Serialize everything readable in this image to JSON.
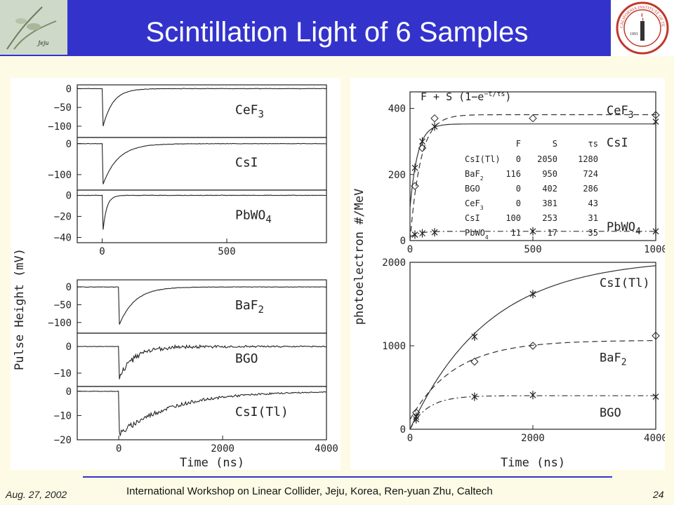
{
  "slide": {
    "title": "Scintillation Light of 6 Samples",
    "logo_left_text": "Jeju",
    "logo_right_text": "CALIFORNIA INSTITUTE OF TECHNOLOGY",
    "logo_right_year": "1891",
    "footer_date": "Aug. 27, 2002",
    "footer_text": "International Workshop on Linear Collider, Jeju, Korea, Ren-yuan Zhu, Caltech",
    "page_number": "24",
    "colors": {
      "title_bar": "#3333cc",
      "background": "#fdfbe6"
    }
  },
  "chart_data": [
    {
      "type": "line",
      "ylabel": "Pulse Height (mV)",
      "xlabel": "",
      "xlim": [
        -100,
        900
      ],
      "xticks": [
        "0",
        "500"
      ],
      "panels": [
        {
          "label": "CeF3",
          "ylim": [
            -130,
            10
          ],
          "yticks": [
            "0",
            "−50",
            "−100"
          ],
          "peak": -110
        },
        {
          "label": "CsI",
          "ylim": [
            -150,
            20
          ],
          "yticks": [
            "0",
            "−100"
          ],
          "peak": -140
        },
        {
          "label": "PbWO4",
          "ylim": [
            -45,
            5
          ],
          "yticks": [
            "0",
            "−20",
            "−40"
          ],
          "peak": -42
        }
      ]
    },
    {
      "type": "line",
      "xlabel": "Time (ns)",
      "xlim": [
        -800,
        4000
      ],
      "xticks": [
        "0",
        "2000",
        "4000"
      ],
      "panels": [
        {
          "label": "BaF2",
          "ylim": [
            -130,
            20
          ],
          "yticks": [
            "0",
            "−50",
            "−100"
          ],
          "peak": -110
        },
        {
          "label": "BGO",
          "ylim": [
            -15,
            5
          ],
          "yticks": [
            "0",
            "−10"
          ],
          "peak": -12
        },
        {
          "label": "CsI(Tl)",
          "ylim": [
            -20,
            2
          ],
          "yticks": [
            "0",
            "−10",
            "−20"
          ],
          "peak": -18
        }
      ]
    },
    {
      "type": "line",
      "ylabel": "photoelectron #/MeV",
      "formula": "F + S (1−e",
      "formula_exp": "−t/τs",
      "formula_end": ")",
      "xlim": [
        0,
        1000
      ],
      "ylim": [
        0,
        450
      ],
      "xticks": [
        0,
        500,
        1000
      ],
      "yticks": [
        0,
        200,
        400
      ],
      "curve_labels": [
        "CeF3",
        "CsI",
        "PbWO4"
      ],
      "table": {
        "headers": [
          "",
          "F",
          "S",
          "τs"
        ],
        "rows": [
          [
            "CsI(Tl)",
            "0",
            "2050",
            "1280"
          ],
          [
            "BaF2",
            "116",
            "950",
            "724"
          ],
          [
            "BGO",
            "0",
            "402",
            "286"
          ],
          [
            "CeF3",
            "0",
            "381",
            "43"
          ],
          [
            "CsI",
            "100",
            "253",
            "31"
          ],
          [
            "PbWO4",
            "11",
            "17",
            "35"
          ]
        ]
      },
      "series": [
        {
          "name": "CeF3",
          "F": 0,
          "S": 381,
          "tau": 43,
          "style": "dashed",
          "points": [
            [
              20,
              165
            ],
            [
              50,
              280
            ],
            [
              100,
              370
            ],
            [
              500,
              370
            ],
            [
              1000,
              380
            ]
          ]
        },
        {
          "name": "CsI",
          "F": 100,
          "S": 253,
          "tau": 31,
          "style": "solid",
          "points": [
            [
              20,
              220
            ],
            [
              50,
              300
            ],
            [
              100,
              345
            ],
            [
              1000,
              360
            ]
          ]
        },
        {
          "name": "PbWO4",
          "F": 11,
          "S": 17,
          "tau": 35,
          "style": "dashdot",
          "points": [
            [
              20,
              18
            ],
            [
              50,
              22
            ],
            [
              100,
              25
            ],
            [
              500,
              28
            ],
            [
              1000,
              28
            ]
          ]
        }
      ]
    },
    {
      "type": "line",
      "xlabel": "Time (ns)",
      "xlim": [
        0,
        4000
      ],
      "ylim": [
        0,
        2000
      ],
      "xticks": [
        0,
        2000,
        4000
      ],
      "yticks": [
        0,
        1000,
        2000
      ],
      "series": [
        {
          "name": "CsI(Tl)",
          "F": 0,
          "S": 2050,
          "tau": 1280,
          "style": "solid",
          "points": [
            [
              100,
              150
            ],
            [
              1050,
              1110
            ],
            [
              2000,
              1620
            ]
          ]
        },
        {
          "name": "BaF2",
          "F": 116,
          "S": 950,
          "tau": 724,
          "style": "dashed",
          "points": [
            [
              100,
              200
            ],
            [
              1050,
              810
            ],
            [
              2000,
              1000
            ],
            [
              4000,
              1120
            ]
          ]
        },
        {
          "name": "BGO",
          "F": 0,
          "S": 402,
          "tau": 286,
          "style": "dashdot",
          "points": [
            [
              100,
              120
            ],
            [
              1050,
              390
            ],
            [
              2000,
              410
            ],
            [
              4000,
              390
            ]
          ]
        }
      ]
    }
  ]
}
